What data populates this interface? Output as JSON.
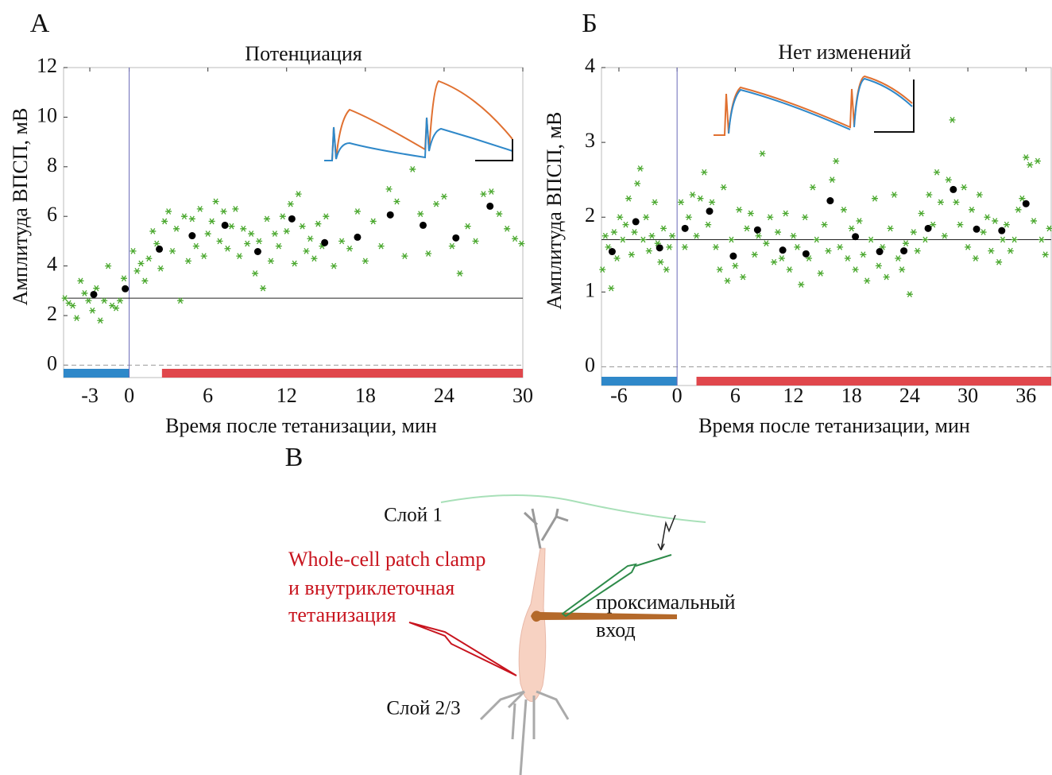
{
  "chart_data": [
    {
      "type": "scatter",
      "title": "Потенциация",
      "xlabel": "Время после тетанизации, мин",
      "ylabel": "Амплитуда ВПСП, мВ",
      "xlim": [
        -5,
        30
      ],
      "ylim": [
        -0.5,
        12
      ],
      "xticks": [
        -3,
        0,
        6,
        12,
        18,
        24,
        30
      ],
      "yticks": [
        0,
        2,
        4,
        6,
        8,
        10,
        12
      ],
      "baseline": 2.7,
      "dashed_line": 0,
      "marker_x": 0,
      "periods": [
        {
          "color": "#2f88c9",
          "from": -5,
          "to": 0
        },
        {
          "color": "#e0474c",
          "from": 2.5,
          "to": 30
        }
      ],
      "series": [
        {
          "color": "#4aa82e",
          "marker": "star",
          "x": [
            -4.9,
            -4.6,
            -4.3,
            -4.0,
            -3.7,
            -3.4,
            -3.1,
            -2.8,
            -2.5,
            -2.2,
            -1.9,
            -1.6,
            -1.3,
            -1.0,
            -0.7,
            -0.4,
            0.3,
            0.6,
            0.9,
            1.2,
            1.5,
            1.8,
            2.1,
            2.4,
            2.7,
            3.0,
            3.3,
            3.6,
            3.9,
            4.2,
            4.5,
            4.8,
            5.1,
            5.4,
            5.7,
            6.0,
            6.3,
            6.6,
            6.9,
            7.2,
            7.5,
            7.8,
            8.1,
            8.4,
            8.7,
            9.0,
            9.3,
            9.6,
            9.9,
            10.2,
            10.5,
            10.8,
            11.1,
            11.4,
            11.7,
            12.0,
            12.3,
            12.6,
            12.9,
            13.2,
            13.5,
            13.8,
            14.1,
            14.4,
            14.7,
            15.0,
            15.6,
            16.2,
            16.8,
            17.4,
            18.0,
            18.6,
            19.2,
            19.8,
            20.4,
            21.0,
            21.6,
            22.2,
            22.8,
            23.4,
            24.0,
            24.6,
            25.2,
            25.8,
            26.4,
            27.0,
            27.6,
            28.2,
            28.8,
            29.4,
            29.9
          ],
          "y": [
            2.7,
            2.5,
            2.4,
            1.9,
            3.4,
            2.9,
            2.6,
            2.2,
            3.1,
            1.8,
            2.6,
            4.0,
            2.4,
            2.3,
            2.6,
            3.5,
            4.6,
            3.8,
            4.1,
            3.4,
            4.3,
            5.4,
            4.9,
            3.9,
            5.8,
            6.2,
            4.6,
            5.5,
            2.6,
            6.0,
            4.2,
            5.9,
            4.8,
            6.3,
            4.4,
            5.3,
            5.8,
            6.6,
            5.0,
            6.2,
            4.7,
            5.6,
            6.3,
            4.4,
            5.5,
            4.9,
            5.3,
            3.7,
            5.0,
            3.1,
            5.9,
            4.2,
            5.3,
            4.8,
            6.0,
            5.4,
            6.5,
            4.1,
            6.9,
            5.6,
            4.6,
            5.1,
            4.3,
            5.7,
            4.8,
            6.0,
            4.0,
            5.0,
            4.7,
            6.2,
            4.2,
            5.8,
            4.8,
            7.1,
            6.6,
            4.4,
            7.9,
            6.1,
            4.5,
            6.5,
            6.8,
            4.8,
            3.7,
            5.6,
            5.0,
            6.9,
            7.0,
            6.1,
            5.5,
            5.1,
            4.9
          ]
        },
        {
          "color": "#000000",
          "marker": "dot",
          "x": [
            -2.7,
            -0.3,
            2.3,
            4.8,
            7.3,
            9.8,
            12.4,
            14.9,
            17.4,
            19.9,
            22.4,
            24.9,
            27.5
          ],
          "y": [
            2.85,
            3.08,
            4.68,
            5.22,
            5.64,
            4.58,
            5.9,
            4.94,
            5.16,
            6.06,
            5.64,
            5.13,
            6.41
          ]
        }
      ]
    },
    {
      "type": "scatter",
      "title": "Нет изменений",
      "xlabel": "Время после тетанизации, мин",
      "ylabel": "Амплитуда ВПСП, мВ",
      "xlim": [
        -7.8,
        38.6
      ],
      "ylim": [
        -0.25,
        4
      ],
      "xticks": [
        -6,
        0,
        6,
        12,
        18,
        24,
        30,
        36
      ],
      "yticks": [
        0,
        1,
        2,
        3,
        4
      ],
      "baseline": 1.7,
      "dashed_line": 0,
      "marker_x": 0,
      "periods": [
        {
          "color": "#2f88c9",
          "from": -7.8,
          "to": 0
        },
        {
          "color": "#e0474c",
          "from": 2,
          "to": 38.6
        }
      ],
      "series": [
        {
          "color": "#4aa82e",
          "marker": "star",
          "x": [
            -7.7,
            -7.4,
            -7.1,
            -6.8,
            -6.5,
            -6.2,
            -5.9,
            -5.6,
            -5.3,
            -5.0,
            -4.7,
            -4.4,
            -4.1,
            -3.8,
            -3.5,
            -3.2,
            -2.9,
            -2.6,
            -2.3,
            -2.0,
            -1.7,
            -1.4,
            -1.1,
            -0.8,
            -0.5,
            0.4,
            0.8,
            1.2,
            1.6,
            2.0,
            2.4,
            2.8,
            3.2,
            3.6,
            4.0,
            4.4,
            4.8,
            5.2,
            5.6,
            6.0,
            6.4,
            6.8,
            7.2,
            7.6,
            8.0,
            8.4,
            8.8,
            9.2,
            9.6,
            10.0,
            10.4,
            10.8,
            11.2,
            11.6,
            12.0,
            12.4,
            12.8,
            13.2,
            13.6,
            14.0,
            14.4,
            14.8,
            15.2,
            15.6,
            16.0,
            16.4,
            16.8,
            17.2,
            17.6,
            18.0,
            18.4,
            18.8,
            19.2,
            19.6,
            20.0,
            20.4,
            20.8,
            21.2,
            21.6,
            22.0,
            22.4,
            22.8,
            23.2,
            23.6,
            24.0,
            24.4,
            24.8,
            25.2,
            25.6,
            26.0,
            26.4,
            26.8,
            27.2,
            27.6,
            28.0,
            28.4,
            28.8,
            29.2,
            29.6,
            30.0,
            30.4,
            30.8,
            31.2,
            31.6,
            32.0,
            32.4,
            32.8,
            33.2,
            33.6,
            34.0,
            34.4,
            34.8,
            35.2,
            35.6,
            36.0,
            36.4,
            36.8,
            37.2,
            37.6,
            38.0,
            38.4
          ],
          "y": [
            1.3,
            1.75,
            1.6,
            1.05,
            1.8,
            1.45,
            2.0,
            1.7,
            1.9,
            2.25,
            1.5,
            1.8,
            2.45,
            2.65,
            1.7,
            2.0,
            1.55,
            1.75,
            2.2,
            1.65,
            1.4,
            1.85,
            1.3,
            1.6,
            1.75,
            2.2,
            1.6,
            2.0,
            2.3,
            1.75,
            2.25,
            2.6,
            1.9,
            2.2,
            1.6,
            1.3,
            2.4,
            1.15,
            1.7,
            1.35,
            2.1,
            1.2,
            1.85,
            2.05,
            1.5,
            1.75,
            2.85,
            1.65,
            2.0,
            1.4,
            1.8,
            1.45,
            2.05,
            1.3,
            1.75,
            1.6,
            1.1,
            2.0,
            1.45,
            2.4,
            1.7,
            1.25,
            1.9,
            1.55,
            2.5,
            2.75,
            1.6,
            2.1,
            1.45,
            1.85,
            1.3,
            1.95,
            1.5,
            1.15,
            1.7,
            2.25,
            1.35,
            1.6,
            1.2,
            1.85,
            2.3,
            1.45,
            1.3,
            1.65,
            0.97,
            1.8,
            1.55,
            2.05,
            1.7,
            2.3,
            1.9,
            2.6,
            2.2,
            1.75,
            2.5,
            3.3,
            2.2,
            1.9,
            2.4,
            1.6,
            2.1,
            1.45,
            2.3,
            1.8,
            2.0,
            1.55,
            1.95,
            1.4,
            1.7,
            1.9,
            1.55,
            1.7,
            2.1,
            2.25,
            2.8,
            2.7,
            1.95,
            2.75,
            1.7,
            1.5,
            1.85
          ]
        },
        {
          "color": "#000000",
          "marker": "dot",
          "x": [
            -6.7,
            -4.26,
            -1.8,
            0.82,
            3.35,
            5.8,
            8.3,
            10.9,
            13.3,
            15.8,
            18.4,
            20.9,
            23.4,
            25.9,
            28.5,
            30.9,
            33.5,
            36.0
          ],
          "y": [
            1.54,
            1.94,
            1.59,
            1.85,
            2.08,
            1.48,
            1.83,
            1.56,
            1.51,
            2.22,
            1.74,
            1.54,
            1.55,
            1.85,
            2.37,
            1.84,
            1.82,
            2.18
          ]
        }
      ]
    }
  ],
  "panel_labels": [
    "А",
    "Б",
    "В"
  ],
  "diagram": {
    "layer1": "Слой 1",
    "layer23": "Слой 2/3",
    "method": [
      "Whole-cell patch clamp",
      "и внутриклеточная",
      "тетанизация"
    ],
    "input": [
      "проксимальный",
      "вход"
    ]
  }
}
